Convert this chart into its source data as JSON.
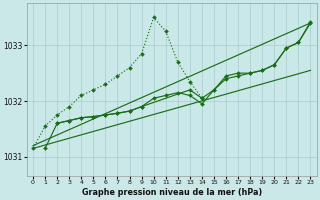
{
  "title": "Graphe pression niveau de la mer (hPa)",
  "bg_color": "#cbe8e8",
  "grid_color": "#a8cccc",
  "line_color": "#1a6e1a",
  "ylim": [
    1030.65,
    1033.75
  ],
  "yticks": [
    1031,
    1032,
    1033
  ],
  "xlim": [
    -0.5,
    23.5
  ],
  "xticks": [
    0,
    1,
    2,
    3,
    4,
    5,
    6,
    7,
    8,
    9,
    10,
    11,
    12,
    13,
    14,
    15,
    16,
    17,
    18,
    19,
    20,
    21,
    22,
    23
  ],
  "line1_straight_low": {
    "x": [
      0,
      23
    ],
    "y": [
      1031.15,
      1032.55
    ]
  },
  "line2_straight_high": {
    "x": [
      0,
      23
    ],
    "y": [
      1031.2,
      1033.4
    ]
  },
  "line3_dotted_peak": {
    "x": [
      0,
      1,
      2,
      3,
      4,
      5,
      6,
      7,
      8,
      9,
      10,
      11,
      12,
      13,
      14
    ],
    "y": [
      1031.15,
      1031.55,
      1031.75,
      1031.9,
      1032.1,
      1032.2,
      1032.3,
      1032.45,
      1032.6,
      1032.85,
      1033.5,
      1033.25,
      1032.7,
      1032.35,
      1032.05
    ]
  },
  "line4_solid_zigzag": {
    "x": [
      1,
      2,
      3,
      4,
      5,
      6,
      7,
      8,
      9,
      10,
      11,
      12,
      13,
      14,
      15,
      16,
      17,
      18,
      19,
      20,
      21,
      22,
      23
    ],
    "y": [
      1031.15,
      1031.6,
      1031.65,
      1031.7,
      1031.72,
      1031.75,
      1031.78,
      1031.82,
      1031.9,
      1032.05,
      1032.1,
      1032.15,
      1032.1,
      1031.95,
      1032.2,
      1032.4,
      1032.45,
      1032.5,
      1032.55,
      1032.65,
      1032.95,
      1033.05,
      1033.4
    ]
  },
  "line5_solid_upper": {
    "x": [
      2,
      3,
      4,
      5,
      6,
      7,
      8,
      9,
      13,
      14,
      15,
      16,
      17,
      18,
      19,
      20,
      21,
      22,
      23
    ],
    "y": [
      1031.6,
      1031.65,
      1031.7,
      1031.72,
      1031.75,
      1031.78,
      1031.82,
      1031.9,
      1032.2,
      1032.05,
      1032.2,
      1032.45,
      1032.5,
      1032.5,
      1032.55,
      1032.65,
      1032.95,
      1033.05,
      1033.42
    ]
  }
}
